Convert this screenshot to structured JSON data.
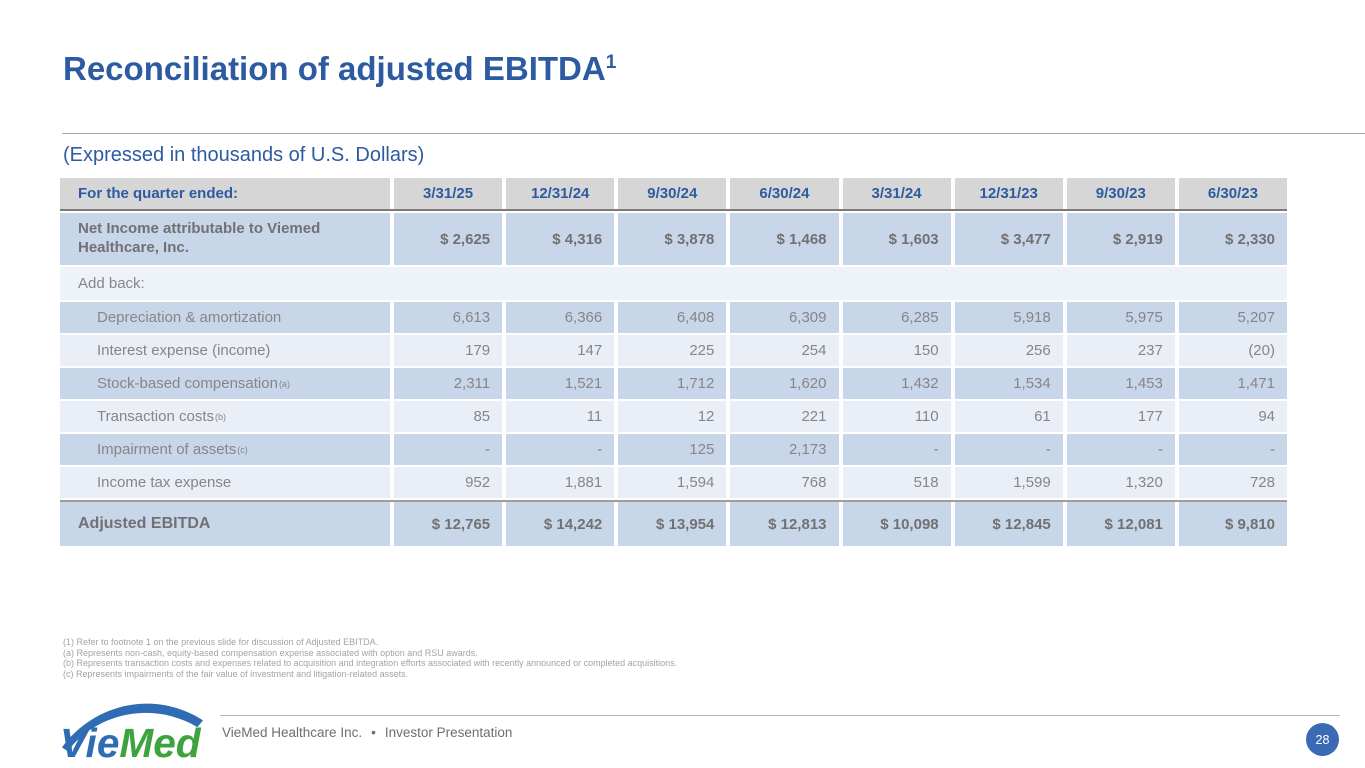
{
  "colors": {
    "accent_blue": "#2d5ba1",
    "header_gray": "#d6d6d6",
    "row_dark": "#c8d6ea",
    "row_light": "#e9eef7",
    "row_span": "#eef2f9",
    "value_gray": "#868686",
    "bold_gray": "#717171",
    "footnote_gray": "#a3a3a3",
    "footer_text_gray": "#6e6e6e",
    "page_badge_blue": "#3a6ab3",
    "logo_blue": "#2e6db4",
    "logo_green": "#3da33c"
  },
  "header": {
    "title": "Reconciliation of adjusted EBITDA",
    "title_superscript": "1",
    "subtitle": "(Expressed in thousands of U.S. Dollars)"
  },
  "table": {
    "corner_label": "For the quarter ended:",
    "columns": [
      "3/31/25",
      "12/31/24",
      "9/30/24",
      "6/30/24",
      "3/31/24",
      "12/31/23",
      "9/30/23",
      "6/30/23"
    ],
    "rows": [
      {
        "label": "Net Income attributable to Viemed Healthcare, Inc.",
        "type": "highlight",
        "values": [
          "$ 2,625",
          "$ 4,316",
          "$ 3,878",
          "$ 1,468",
          "$ 1,603",
          "$ 3,477",
          "$ 2,919",
          "$ 2,330"
        ]
      },
      {
        "label": "Add back:",
        "type": "span",
        "values": []
      },
      {
        "label": "Depreciation & amortization",
        "type": "dark",
        "indent": true,
        "values": [
          "6,613",
          "6,366",
          "6,408",
          "6,309",
          "6,285",
          "5,918",
          "5,975",
          "5,207"
        ]
      },
      {
        "label": "Interest expense (income)",
        "type": "light",
        "indent": true,
        "values": [
          "179",
          "147",
          "225",
          "254",
          "150",
          "256",
          "237",
          "(20)"
        ]
      },
      {
        "label": "Stock-based compensation",
        "label_sup": "(a)",
        "type": "dark",
        "indent": true,
        "values": [
          "2,311",
          "1,521",
          "1,712",
          "1,620",
          "1,432",
          "1,534",
          "1,453",
          "1,471"
        ]
      },
      {
        "label": "Transaction costs",
        "label_sup": "(b)",
        "type": "light",
        "indent": true,
        "values": [
          "85",
          "11",
          "12",
          "221",
          "110",
          "61",
          "177",
          "94"
        ]
      },
      {
        "label": "Impairment of assets",
        "label_sup": "(c)",
        "type": "dark",
        "indent": true,
        "values": [
          "-",
          "-",
          "125",
          "2,173",
          "-",
          "-",
          "-",
          "-"
        ]
      },
      {
        "label": "Income tax expense",
        "type": "light",
        "indent": true,
        "values": [
          "952",
          "1,881",
          "1,594",
          "768",
          "518",
          "1,599",
          "1,320",
          "728"
        ]
      },
      {
        "label": "Adjusted EBITDA",
        "type": "total",
        "values": [
          "$ 12,765",
          "$ 14,242",
          "$ 13,954",
          "$ 12,813",
          "$ 10,098",
          "$ 12,845",
          "$ 12,081",
          "$ 9,810"
        ]
      }
    ]
  },
  "footnotes": [
    "(1) Refer to footnote 1 on the previous slide for discussion of Adjusted EBITDA.",
    "(a) Represents non-cash, equity-based compensation expense associated with option and RSU awards.",
    "(b) Represents transaction costs and expenses related to acquisition and integration efforts associated with recently announced or completed acquisitions.",
    "(c) Represents impairments of the fair value of investment and litigation-related assets."
  ],
  "footer": {
    "logo": {
      "blue_part": "Vie",
      "green_part": "Med"
    },
    "company": "VieMed Healthcare Inc.",
    "separator": "•",
    "presentation": "Investor Presentation",
    "page_number": "28"
  }
}
